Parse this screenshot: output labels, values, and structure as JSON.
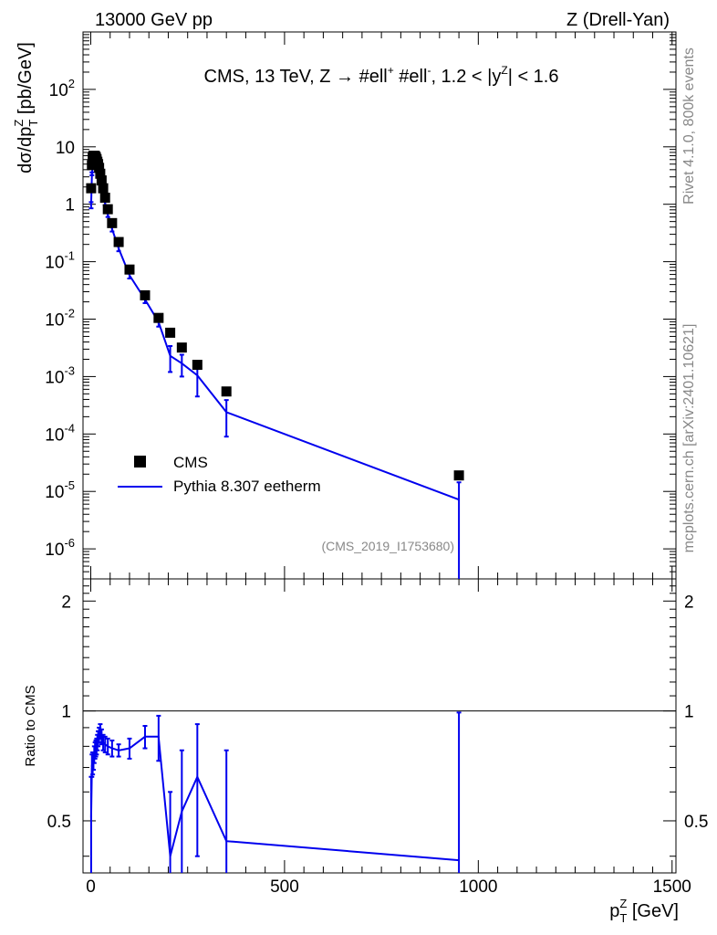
{
  "header": {
    "left": "13000 GeV pp",
    "right": "Z (Drell-Yan)"
  },
  "side_labels": {
    "rivet": "Rivet 4.1.0,  800k events",
    "mcplots": "mcplots.cern.ch [arXiv:2401.10621]"
  },
  "chart_data": {
    "type": "scatter",
    "title": {
      "prefix": "CMS, 13 TeV, Z →  #ell",
      "sup1": "+",
      "mid": " #ell",
      "sup2": "-",
      "cut": ", 1.2 < |y",
      "sup3": "Z",
      "end": "| < 1.6"
    },
    "analysis_id": "(CMS_2019_I1753680)",
    "xlabel": {
      "main": "p",
      "sub": "T",
      "sup": "Z",
      "unit": " [GeV]"
    },
    "ylabel": {
      "pre": "dσ/dp",
      "sup": "Z",
      "sub": "T",
      "unit": " [pb/GeV]"
    },
    "ratio_ylabel": "Ratio to CMS",
    "xlim": [
      -20,
      1510
    ],
    "ylim": [
      3e-07,
      1000
    ],
    "ratio_ylim": [
      0.36,
      2.3
    ],
    "x_ticks": [
      0,
      500,
      1000,
      1500
    ],
    "y_ticks": [
      {
        "v": 1e-06,
        "b": "10",
        "e": "-6"
      },
      {
        "v": 1e-05,
        "b": "10",
        "e": "-5"
      },
      {
        "v": 0.0001,
        "b": "10",
        "e": "-4"
      },
      {
        "v": 0.001,
        "b": "10",
        "e": "-3"
      },
      {
        "v": 0.01,
        "b": "10",
        "e": "-2"
      },
      {
        "v": 0.1,
        "b": "10",
        "e": "-1"
      },
      {
        "v": 1,
        "b": "1",
        "e": ""
      },
      {
        "v": 10,
        "b": "10",
        "e": ""
      },
      {
        "v": 100,
        "b": "10",
        "e": "2"
      }
    ],
    "ratio_ticks": [
      0.5,
      1,
      2
    ],
    "ratio_labels": [
      "0.5",
      "1",
      "2"
    ],
    "legend": {
      "data": "CMS",
      "mc": "Pythia 8.307 eetherm"
    },
    "colors": {
      "data": "#000000",
      "mc": "#0000ee"
    },
    "series": [
      {
        "name": "CMS",
        "x": [
          1,
          3,
          5,
          7,
          9,
          11,
          13,
          15,
          17,
          19,
          21.5,
          24.5,
          28,
          32,
          37,
          44,
          55,
          72,
          100,
          140,
          175,
          205,
          235,
          275,
          350,
          950
        ],
        "y": [
          1.9,
          4.8,
          6.5,
          7.0,
          7.0,
          6.9,
          6.6,
          6.1,
          5.5,
          5.0,
          4.3,
          3.4,
          2.6,
          1.9,
          1.3,
          0.82,
          0.47,
          0.22,
          0.073,
          0.026,
          0.0105,
          0.0058,
          0.0032,
          0.0016,
          0.00055,
          1.9e-05
        ]
      },
      {
        "name": "Pythia 8.307 eetherm",
        "x": [
          1,
          3,
          5,
          7,
          9,
          11,
          13,
          15,
          17,
          19,
          21.5,
          24.5,
          28,
          32,
          37,
          44,
          55,
          72,
          100,
          140,
          175,
          205,
          235,
          275,
          350,
          950
        ],
        "y": [
          0.97,
          3.4,
          4.6,
          5.1,
          5.3,
          5.4,
          5.2,
          4.9,
          4.5,
          4.2,
          3.7,
          3.0,
          2.2,
          1.55,
          1.05,
          0.66,
          0.37,
          0.17,
          0.058,
          0.022,
          0.0089,
          0.0023,
          0.0017,
          0.00105,
          0.00024,
          7.2e-06
        ],
        "err": [
          0.12,
          0.2,
          0.25,
          0.25,
          0.25,
          0.25,
          0.25,
          0.25,
          0.25,
          0.25,
          0.22,
          0.2,
          0.15,
          0.12,
          0.09,
          0.06,
          0.035,
          0.018,
          0.007,
          0.003,
          0.0015,
          0.0011,
          0.0007,
          0.0006,
          0.00015,
          7.2e-06
        ]
      }
    ],
    "ratio": {
      "x": [
        1,
        3,
        5,
        7,
        9,
        11,
        13,
        15,
        17,
        19,
        21.5,
        24.5,
        28,
        32,
        37,
        44,
        55,
        72,
        100,
        140,
        175,
        205,
        235,
        275,
        350,
        950
      ],
      "y": [
        0.51,
        0.71,
        0.72,
        0.73,
        0.76,
        0.78,
        0.79,
        0.8,
        0.82,
        0.84,
        0.86,
        0.88,
        0.85,
        0.82,
        0.81,
        0.8,
        0.79,
        0.78,
        0.79,
        0.85,
        0.85,
        0.4,
        0.53,
        0.66,
        0.44,
        0.39
      ],
      "err": [
        0.15,
        0.05,
        0.05,
        0.04,
        0.04,
        0.04,
        0.04,
        0.04,
        0.04,
        0.04,
        0.04,
        0.04,
        0.04,
        0.04,
        0.04,
        0.04,
        0.04,
        0.03,
        0.05,
        0.06,
        0.12,
        0.2,
        0.25,
        0.26,
        0.34,
        0.6
      ]
    }
  }
}
